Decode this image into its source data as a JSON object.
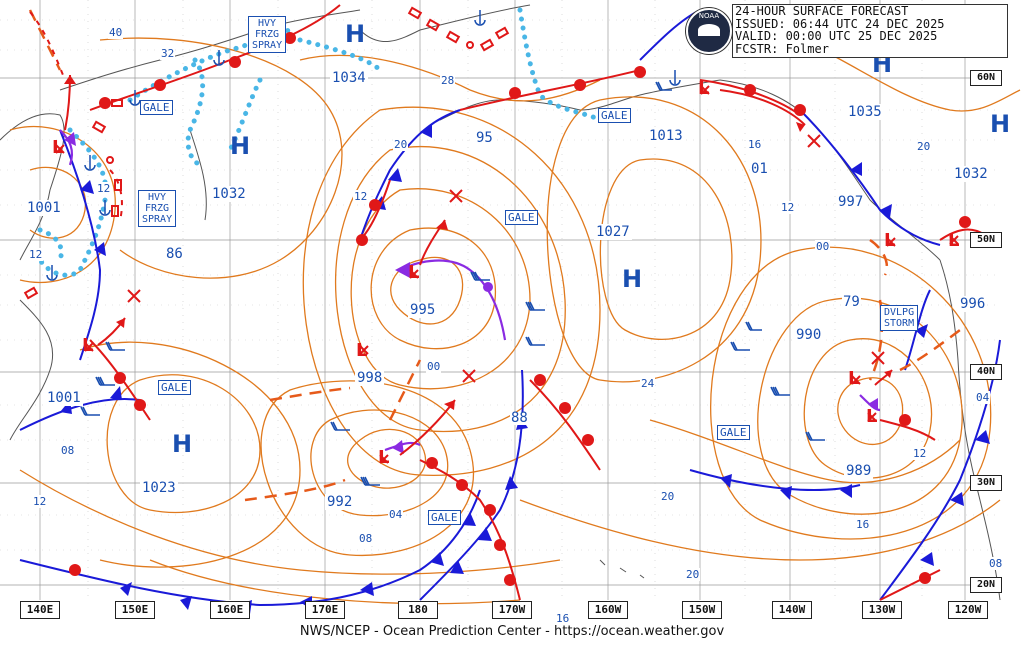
{
  "header": {
    "line1": "24-HOUR SURFACE FORECAST",
    "line2": "ISSUED: 06:44 UTC 24 DEC 2025",
    "line3": "VALID:  00:00 UTC 25 DEC 2025",
    "line4": "FCSTR:  Folmer",
    "logo_text": "NOAA"
  },
  "footer": "NWS/NCEP - Ocean Prediction Center - https://ocean.weather.gov",
  "longitude_labels": [
    "140E",
    "150E",
    "160E",
    "170E",
    "180",
    "170W",
    "160W",
    "150W",
    "140W",
    "130W",
    "120W"
  ],
  "latitude_labels": [
    "60N",
    "50N",
    "40N",
    "30N",
    "20N"
  ],
  "pressure_centers": [
    {
      "type": "H",
      "value": "1034"
    },
    {
      "type": "H",
      "value": "1032"
    },
    {
      "type": "H",
      "value": "1027"
    },
    {
      "type": "H",
      "value": "1035"
    },
    {
      "type": "H",
      "value": "1032"
    },
    {
      "type": "H",
      "value": "1023"
    },
    {
      "type": "H",
      "value": ""
    },
    {
      "type": "L",
      "value": "1001"
    },
    {
      "type": "L",
      "value": "1001"
    },
    {
      "type": "L",
      "value": "995"
    },
    {
      "type": "L",
      "value": "998"
    },
    {
      "type": "L",
      "value": "992"
    },
    {
      "type": "L",
      "value": "1013"
    },
    {
      "type": "L",
      "value": "997"
    },
    {
      "type": "L",
      "value": "996"
    },
    {
      "type": "L",
      "value": "989"
    },
    {
      "type": "L",
      "value": "990"
    }
  ],
  "isobar_labels": [
    "40",
    "32",
    "28",
    "20",
    "12",
    "20",
    "12",
    "86",
    "08",
    "12",
    "08",
    "04",
    "00",
    "88",
    "95",
    "01",
    "16",
    "12",
    "00",
    "79",
    "20",
    "24",
    "20",
    "16",
    "12",
    "04",
    "08",
    "16",
    "12"
  ],
  "warnings": {
    "gale": "GALE",
    "hvy_frzg_spray": [
      "HVY",
      "FRZG",
      "SPRAY"
    ],
    "dvlpg_storm": [
      "DVLPG",
      "STORM"
    ]
  },
  "colors": {
    "isobar": "#e07a1e",
    "cold_front": "#1a1ad8",
    "warm_front": "#e01818",
    "occluded": "#8a2be2",
    "freezing_spray": "#49b6e6",
    "label_blue": "#1a4fb0",
    "land": "#555555",
    "grid": "#9a9a9a"
  }
}
